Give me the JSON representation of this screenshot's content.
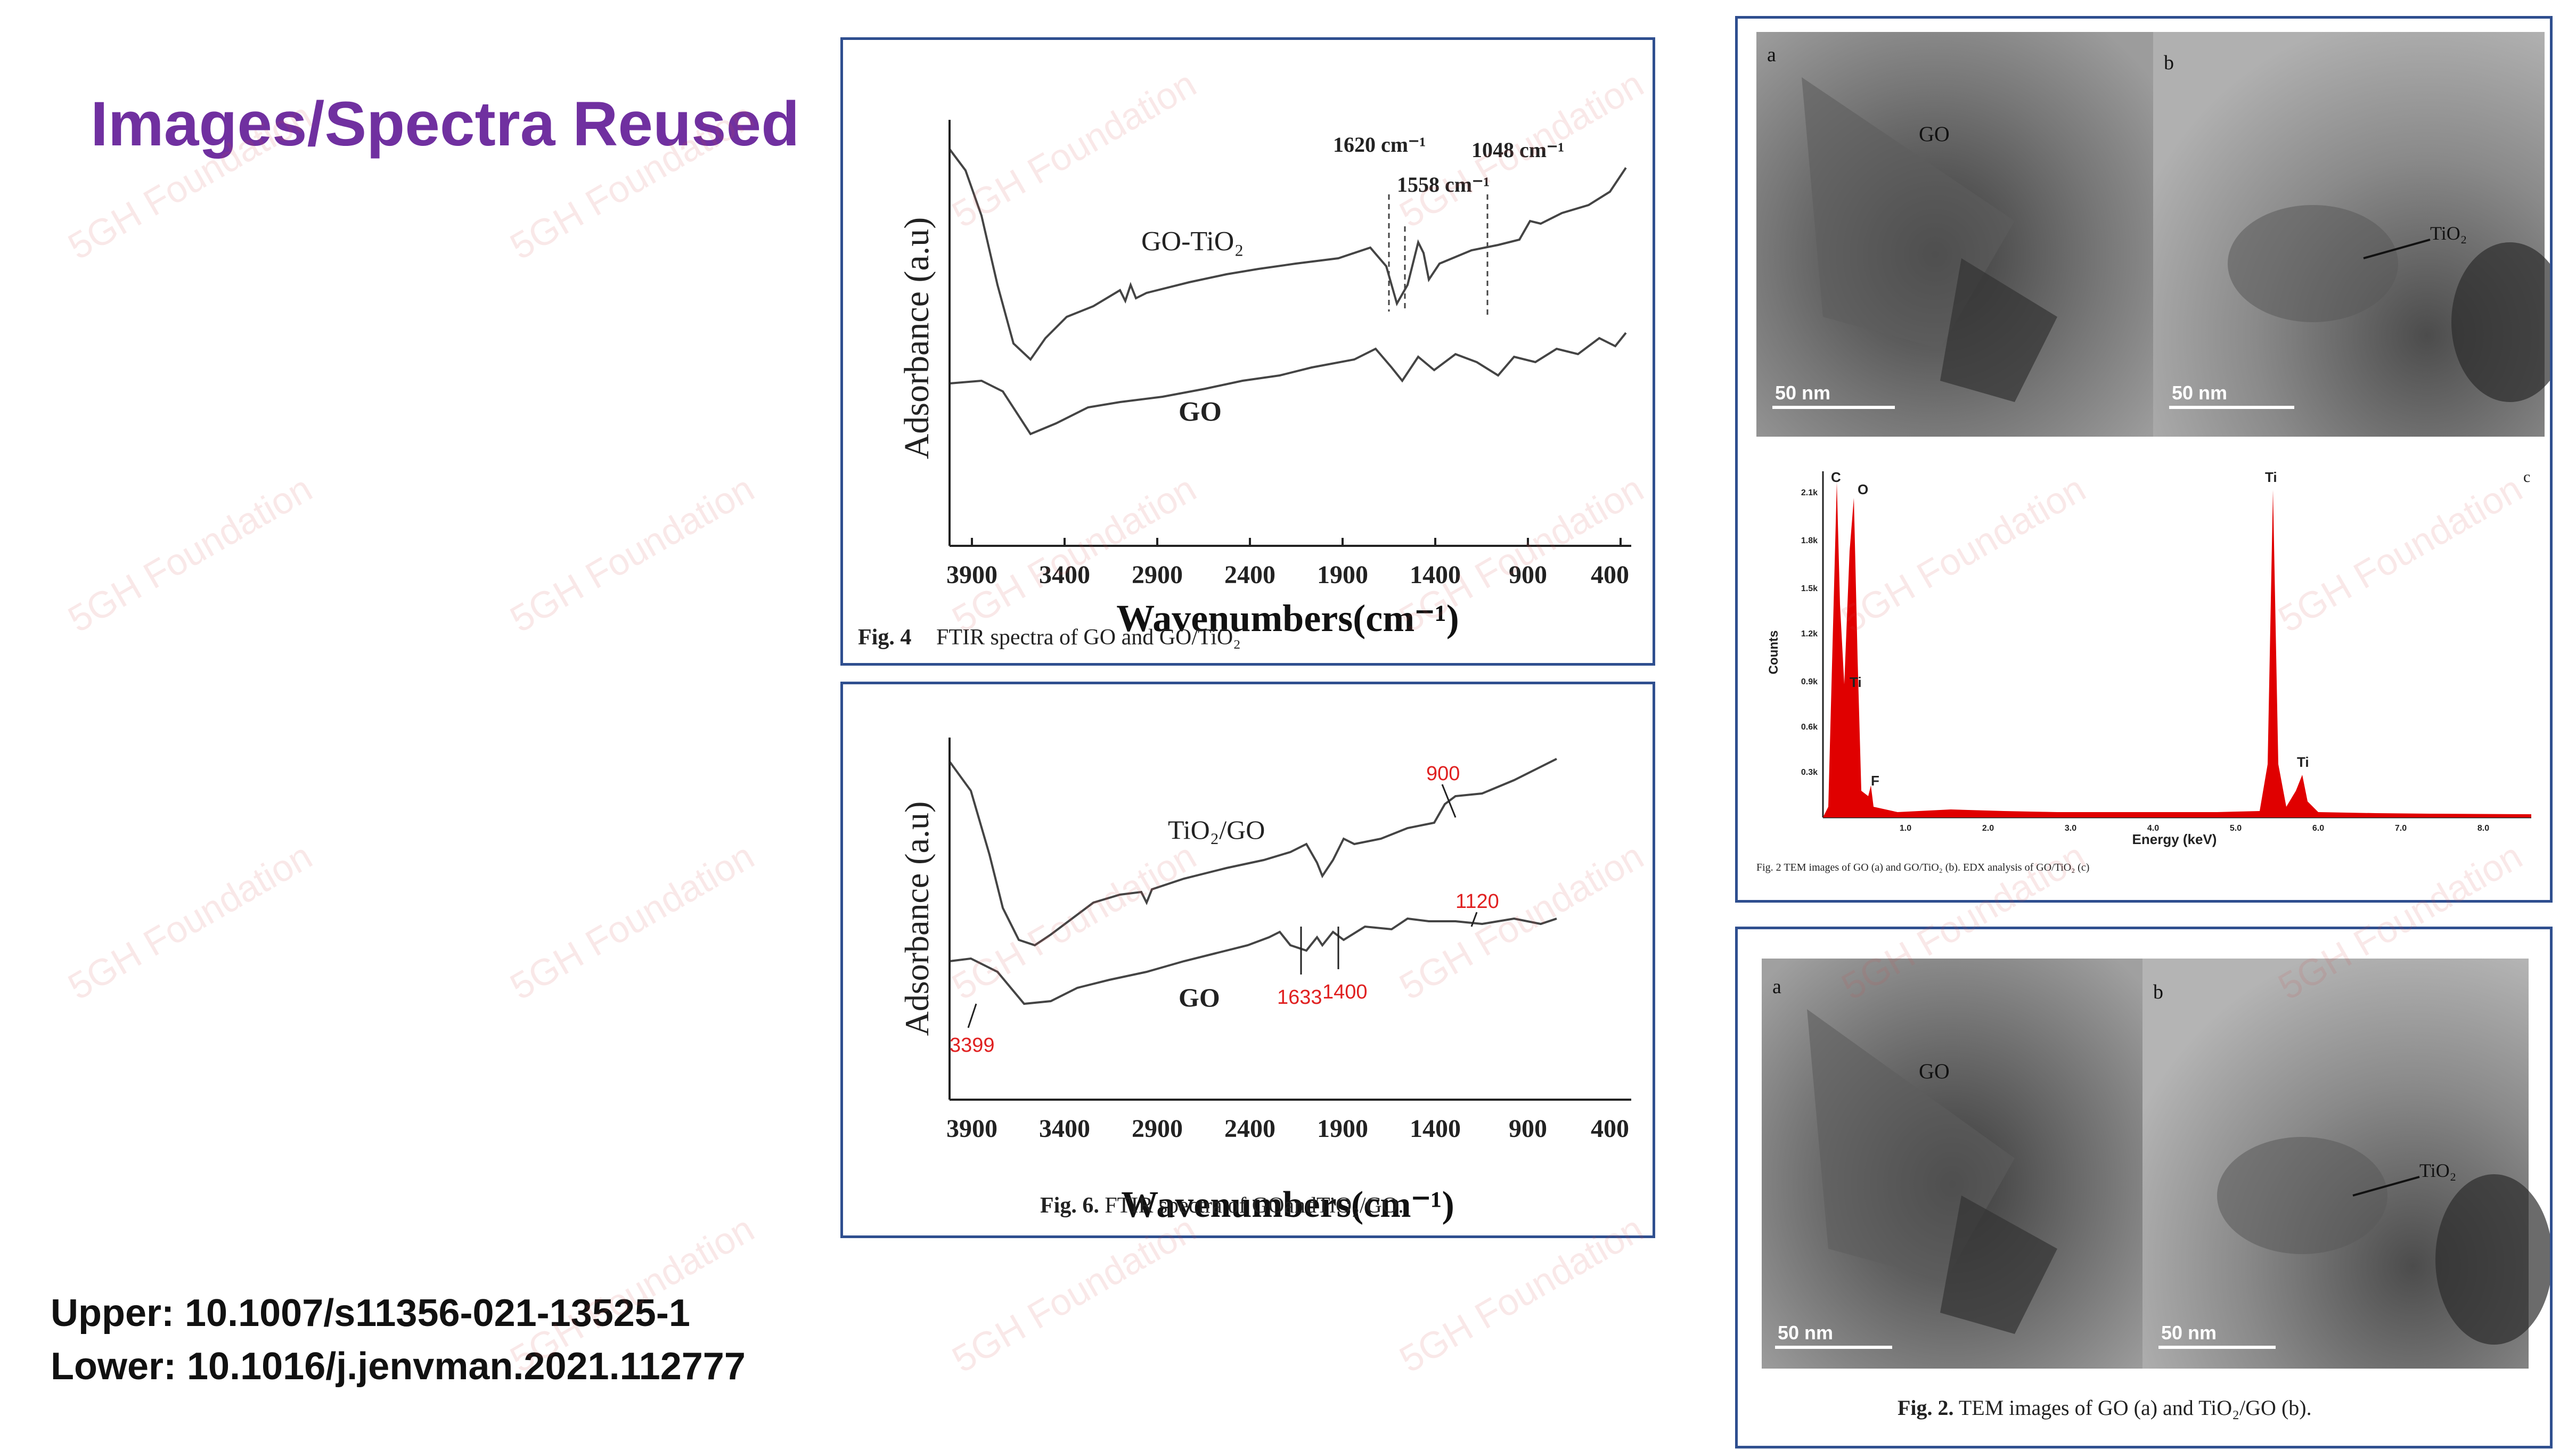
{
  "slide": {
    "title": "Images/Spectra Reused",
    "references": {
      "upper": "Upper: 10.1007/s11356-021-13525-1",
      "lower": "Lower: 10.1016/j.jenvman.2021.112777"
    },
    "watermark": "5GH Foundation"
  },
  "fig_upper_ftir": {
    "ylabel": "Adsorbance (a.u)",
    "xlabel": "Wavenumbers(cm⁻¹)",
    "xticks": [
      "3900",
      "3400",
      "2900",
      "2400",
      "1900",
      "1400",
      "900",
      "400"
    ],
    "series": [
      {
        "name": "GO-TiO₂"
      },
      {
        "name": "GO"
      }
    ],
    "annotations": [
      "1620 cm⁻¹",
      "1558 cm⁻¹",
      "1048 cm⁻¹"
    ],
    "caption_prefix": "Fig. 4",
    "caption_text": "FTIR spectra of GO and GO/TiO₂"
  },
  "fig_lower_ftir": {
    "ylabel": "Adsorbance (a.u)",
    "xlabel": "Wavenumbers(cm⁻¹)",
    "xticks": [
      "3900",
      "3400",
      "2900",
      "2400",
      "1900",
      "1400",
      "900",
      "400"
    ],
    "series": [
      {
        "name": "TiO₂/GO"
      },
      {
        "name": "GO"
      }
    ],
    "annotations": [
      "900",
      "1120",
      "1633",
      "1400",
      "3399"
    ],
    "annotation_color": "#e02020",
    "caption_prefix": "Fig. 6.",
    "caption_text": "FTIR spectra of GOandTiO₂/GO."
  },
  "fig_upper_tem": {
    "labels": {
      "a": "a",
      "b": "b",
      "c": "c",
      "go": "GO",
      "tio2": "TiO₂",
      "scale_a": "50 nm",
      "scale_b": "50 nm"
    },
    "edx": {
      "ylabel": "Counts",
      "xlabel": "Energy (keV)",
      "yticks": [
        "0.3k",
        "0.6k",
        "0.9k",
        "1.2k",
        "1.5k",
        "1.8k",
        "2.1k"
      ],
      "xticks": [
        "1.0",
        "2.0",
        "3.0",
        "4.0",
        "5.0",
        "6.0",
        "7.0",
        "8.0"
      ],
      "peaks": [
        "C",
        "O",
        "Ti",
        "F",
        "Ti",
        "Ti"
      ],
      "color": "#e00000"
    },
    "caption": "Fig. 2  TEM images of GO (a) and GO/TiO₂ (b). EDX analysis of GO/TiO₂ (c)"
  },
  "fig_lower_tem": {
    "labels": {
      "a": "a",
      "b": "b",
      "go": "GO",
      "tio2": "TiO₂",
      "scale_a": "50 nm",
      "scale_b": "50 nm"
    },
    "caption_prefix": "Fig. 2.",
    "caption_text": "TEM images of GO (a) and TiO₂/GO (b)."
  }
}
